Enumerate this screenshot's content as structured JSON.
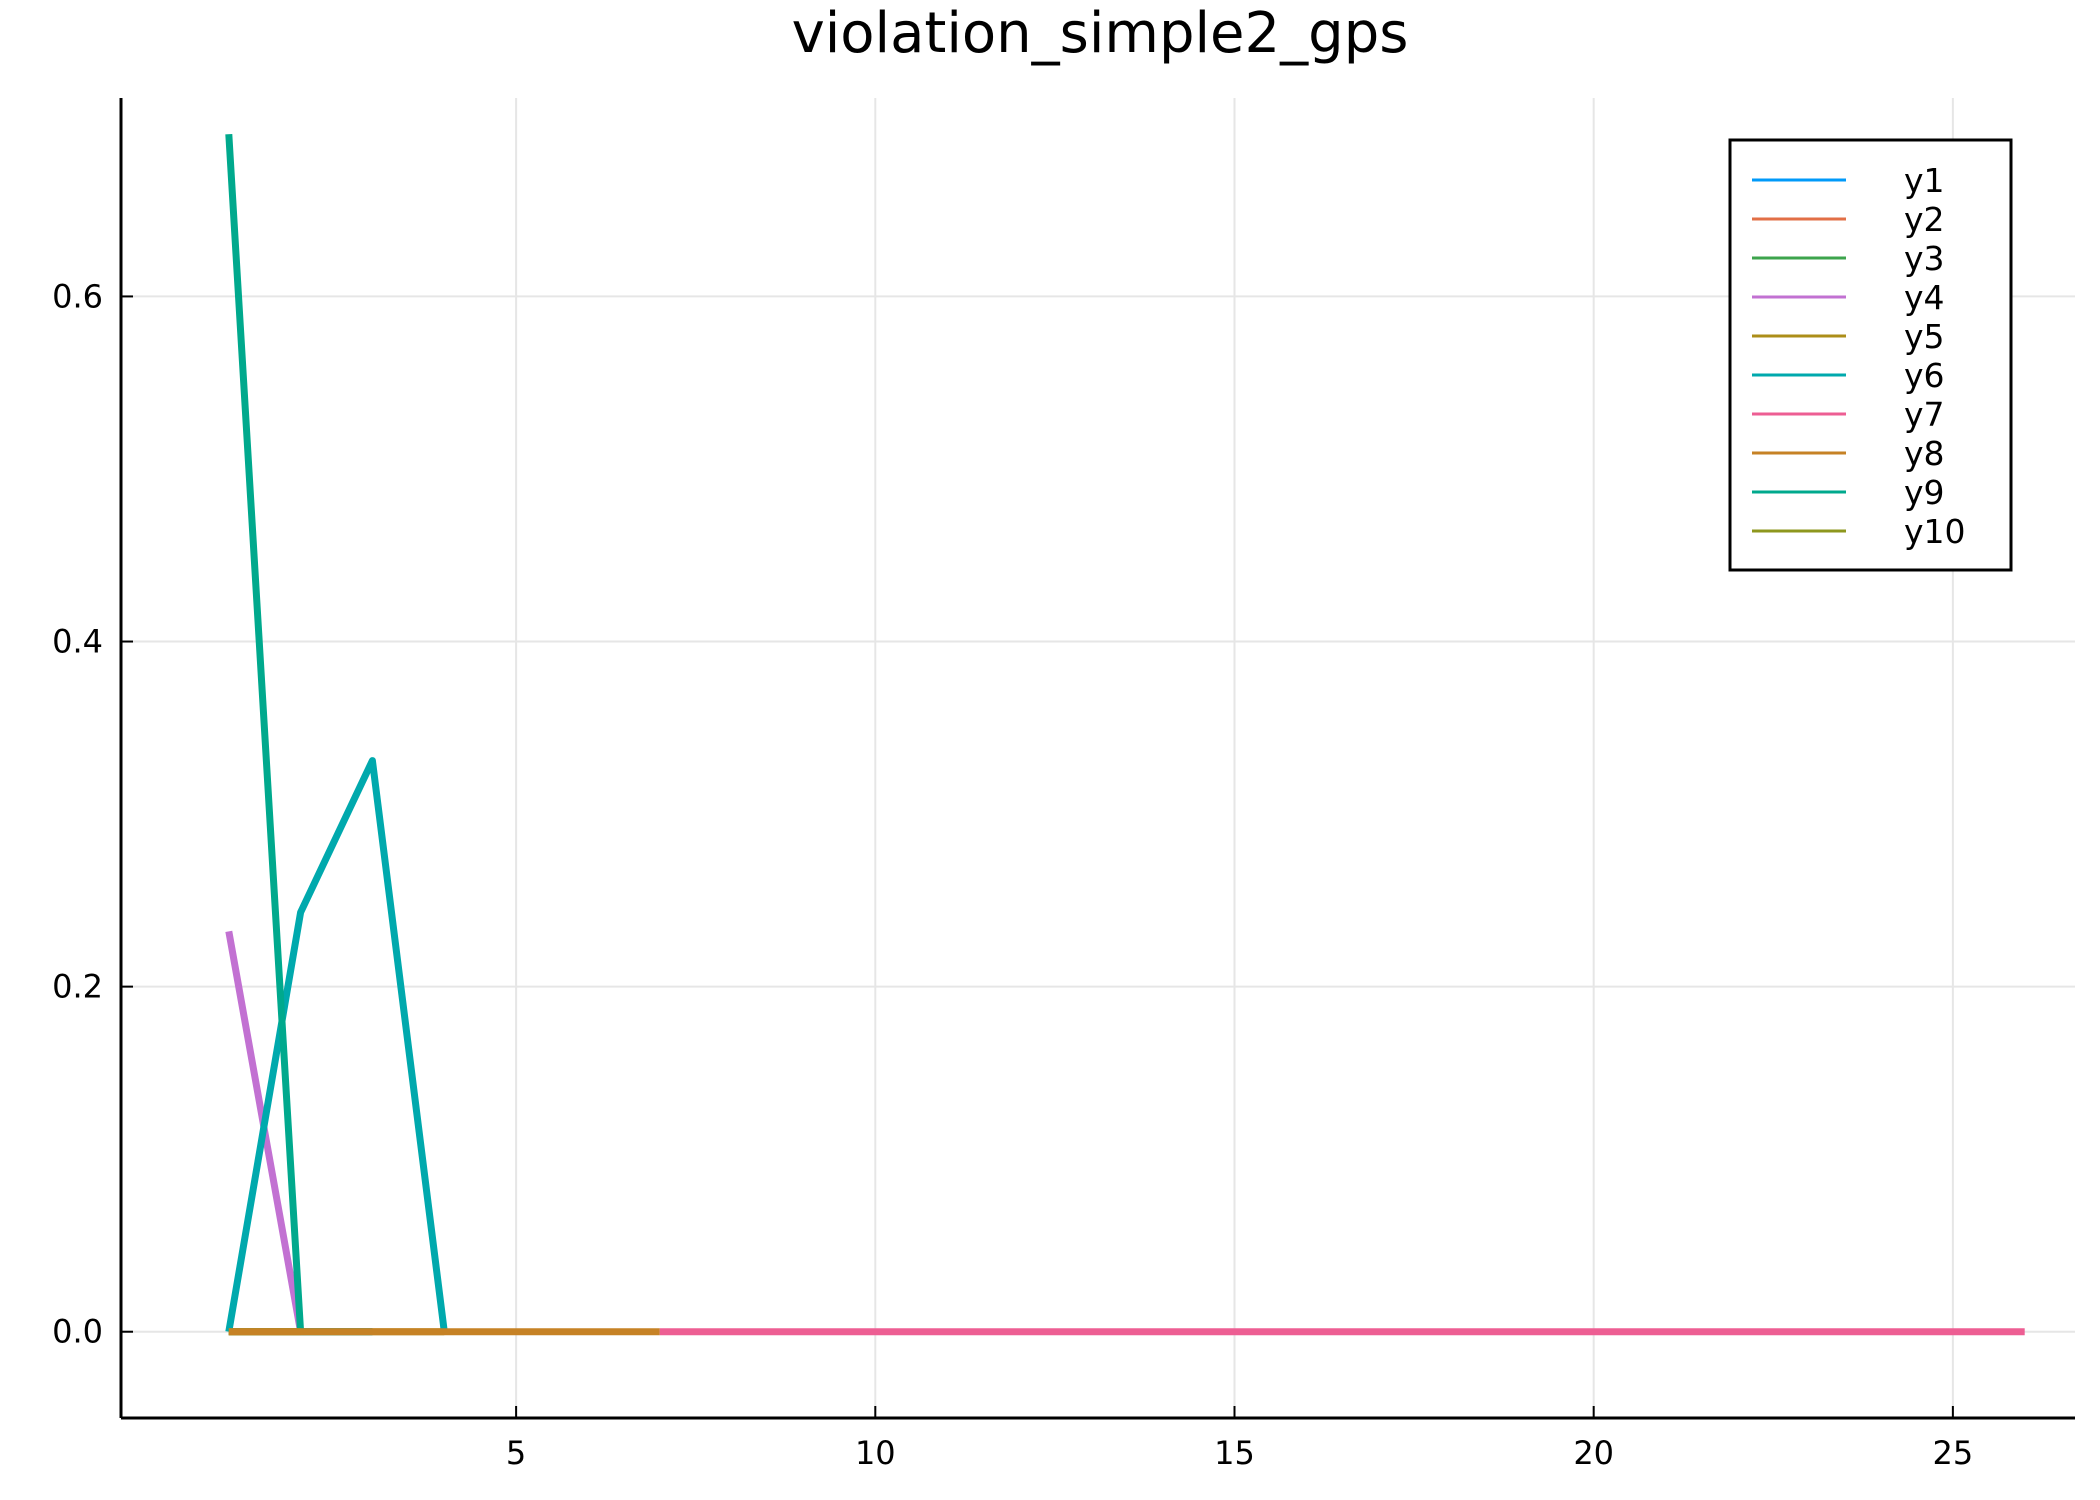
{
  "chart_data": {
    "type": "line",
    "title": "violation_simple2_gps",
    "xlabel": "",
    "ylabel": "",
    "xlim": [
      -0.5,
      26.7
    ],
    "ylim": [
      -0.05,
      0.715
    ],
    "xticks": [
      5,
      10,
      15,
      20,
      25
    ],
    "xtick_labels": [
      "5",
      "10",
      "15",
      "20",
      "25"
    ],
    "yticks": [
      0.0,
      0.2,
      0.4,
      0.6
    ],
    "ytick_labels": [
      "0.0",
      "0.2",
      "0.4",
      "0.6"
    ],
    "grid": true,
    "legend_position": "top-right",
    "series": [
      {
        "name": "y1",
        "color": "#009af9",
        "x": [
          1,
          2
        ],
        "y": [
          0.0,
          0.0
        ]
      },
      {
        "name": "y2",
        "color": "#e26f46",
        "x": [
          1,
          2
        ],
        "y": [
          0.0,
          0.0
        ]
      },
      {
        "name": "y3",
        "color": "#3da44d",
        "x": [
          1,
          2,
          3
        ],
        "y": [
          0.0,
          0.0,
          0.0
        ]
      },
      {
        "name": "y4",
        "color": "#c271d2",
        "x": [
          1,
          2,
          3
        ],
        "y": [
          0.232,
          0.0,
          0.0
        ]
      },
      {
        "name": "y5",
        "color": "#ac8e18",
        "x": [
          1,
          2,
          3,
          4
        ],
        "y": [
          0.0,
          0.0,
          0.0,
          0.0
        ]
      },
      {
        "name": "y6",
        "color": "#00a9ad",
        "x": [
          1,
          2,
          3,
          4
        ],
        "y": [
          0.0,
          0.243,
          0.331,
          0.0
        ]
      },
      {
        "name": "y7",
        "color": "#ed5e93",
        "x": [
          7,
          8,
          9,
          10,
          11,
          12,
          13,
          14,
          15,
          16,
          17,
          18,
          19,
          20,
          21,
          22,
          23,
          24,
          25,
          26
        ],
        "y": [
          0,
          0,
          0,
          0,
          0,
          0,
          0,
          0,
          0,
          0,
          0,
          0,
          0,
          0,
          0,
          0,
          0,
          0,
          0,
          0
        ]
      },
      {
        "name": "y8",
        "color": "#c68225",
        "x": [
          1,
          2,
          3,
          4,
          5,
          6,
          7
        ],
        "y": [
          0,
          0,
          0,
          0,
          0,
          0,
          0
        ]
      },
      {
        "name": "y9",
        "color": "#00a98d",
        "x": [
          1,
          2,
          3
        ],
        "y": [
          0.694,
          0.0,
          0.0
        ]
      },
      {
        "name": "y10",
        "color": "#8e971e",
        "x": [
          1,
          2
        ],
        "y": [
          0.0,
          0.0
        ]
      }
    ],
    "draw_order": [
      0,
      1,
      2,
      3,
      4,
      5,
      8,
      9,
      7,
      6
    ]
  }
}
